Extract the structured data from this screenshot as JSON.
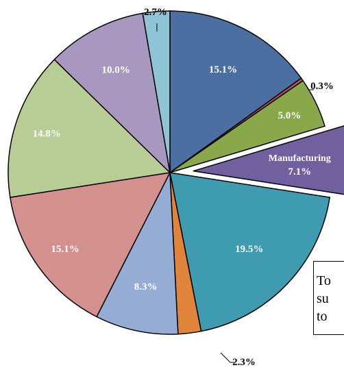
{
  "chart_data": {
    "type": "pie",
    "title": "",
    "slices": [
      {
        "label": "",
        "value": 15.1,
        "display": "15.1%",
        "color": "#4a6fa0",
        "text_color": "#ffffff"
      },
      {
        "label": "",
        "value": 0.3,
        "display": "0.3%",
        "color": "#c0504d",
        "text_color": "#000000"
      },
      {
        "label": "",
        "value": 5.0,
        "display": "5.0%",
        "color": "#88a84a",
        "text_color": "#ffffff"
      },
      {
        "label": "Manufacturing",
        "value": 7.1,
        "display": "7.1%",
        "color": "#7060a0",
        "text_color": "#ffffff",
        "exploded": true
      },
      {
        "label": "",
        "value": 19.5,
        "display": "19.5%",
        "color": "#3f9bb0",
        "text_color": "#ffffff"
      },
      {
        "label": "",
        "value": 2.3,
        "display": "2.3%",
        "color": "#e0843c",
        "text_color": "#000000"
      },
      {
        "label": "",
        "value": 8.3,
        "display": "8.3%",
        "color": "#95acd4",
        "text_color": "#ffffff"
      },
      {
        "label": "",
        "value": 15.1,
        "display": "15.1%",
        "color": "#d4908c",
        "text_color": "#ffffff"
      },
      {
        "label": "",
        "value": 14.8,
        "display": "14.8%",
        "color": "#b8cc96",
        "text_color": "#ffffff"
      },
      {
        "label": "",
        "value": 10.0,
        "display": "10.0%",
        "color": "#a898c0",
        "text_color": "#ffffff"
      },
      {
        "label": "",
        "value": 2.7,
        "display": "2.7%",
        "color": "#8ec4d6",
        "text_color": "#000000"
      }
    ]
  },
  "note_box": {
    "lines": [
      "To",
      "su",
      "to"
    ]
  }
}
